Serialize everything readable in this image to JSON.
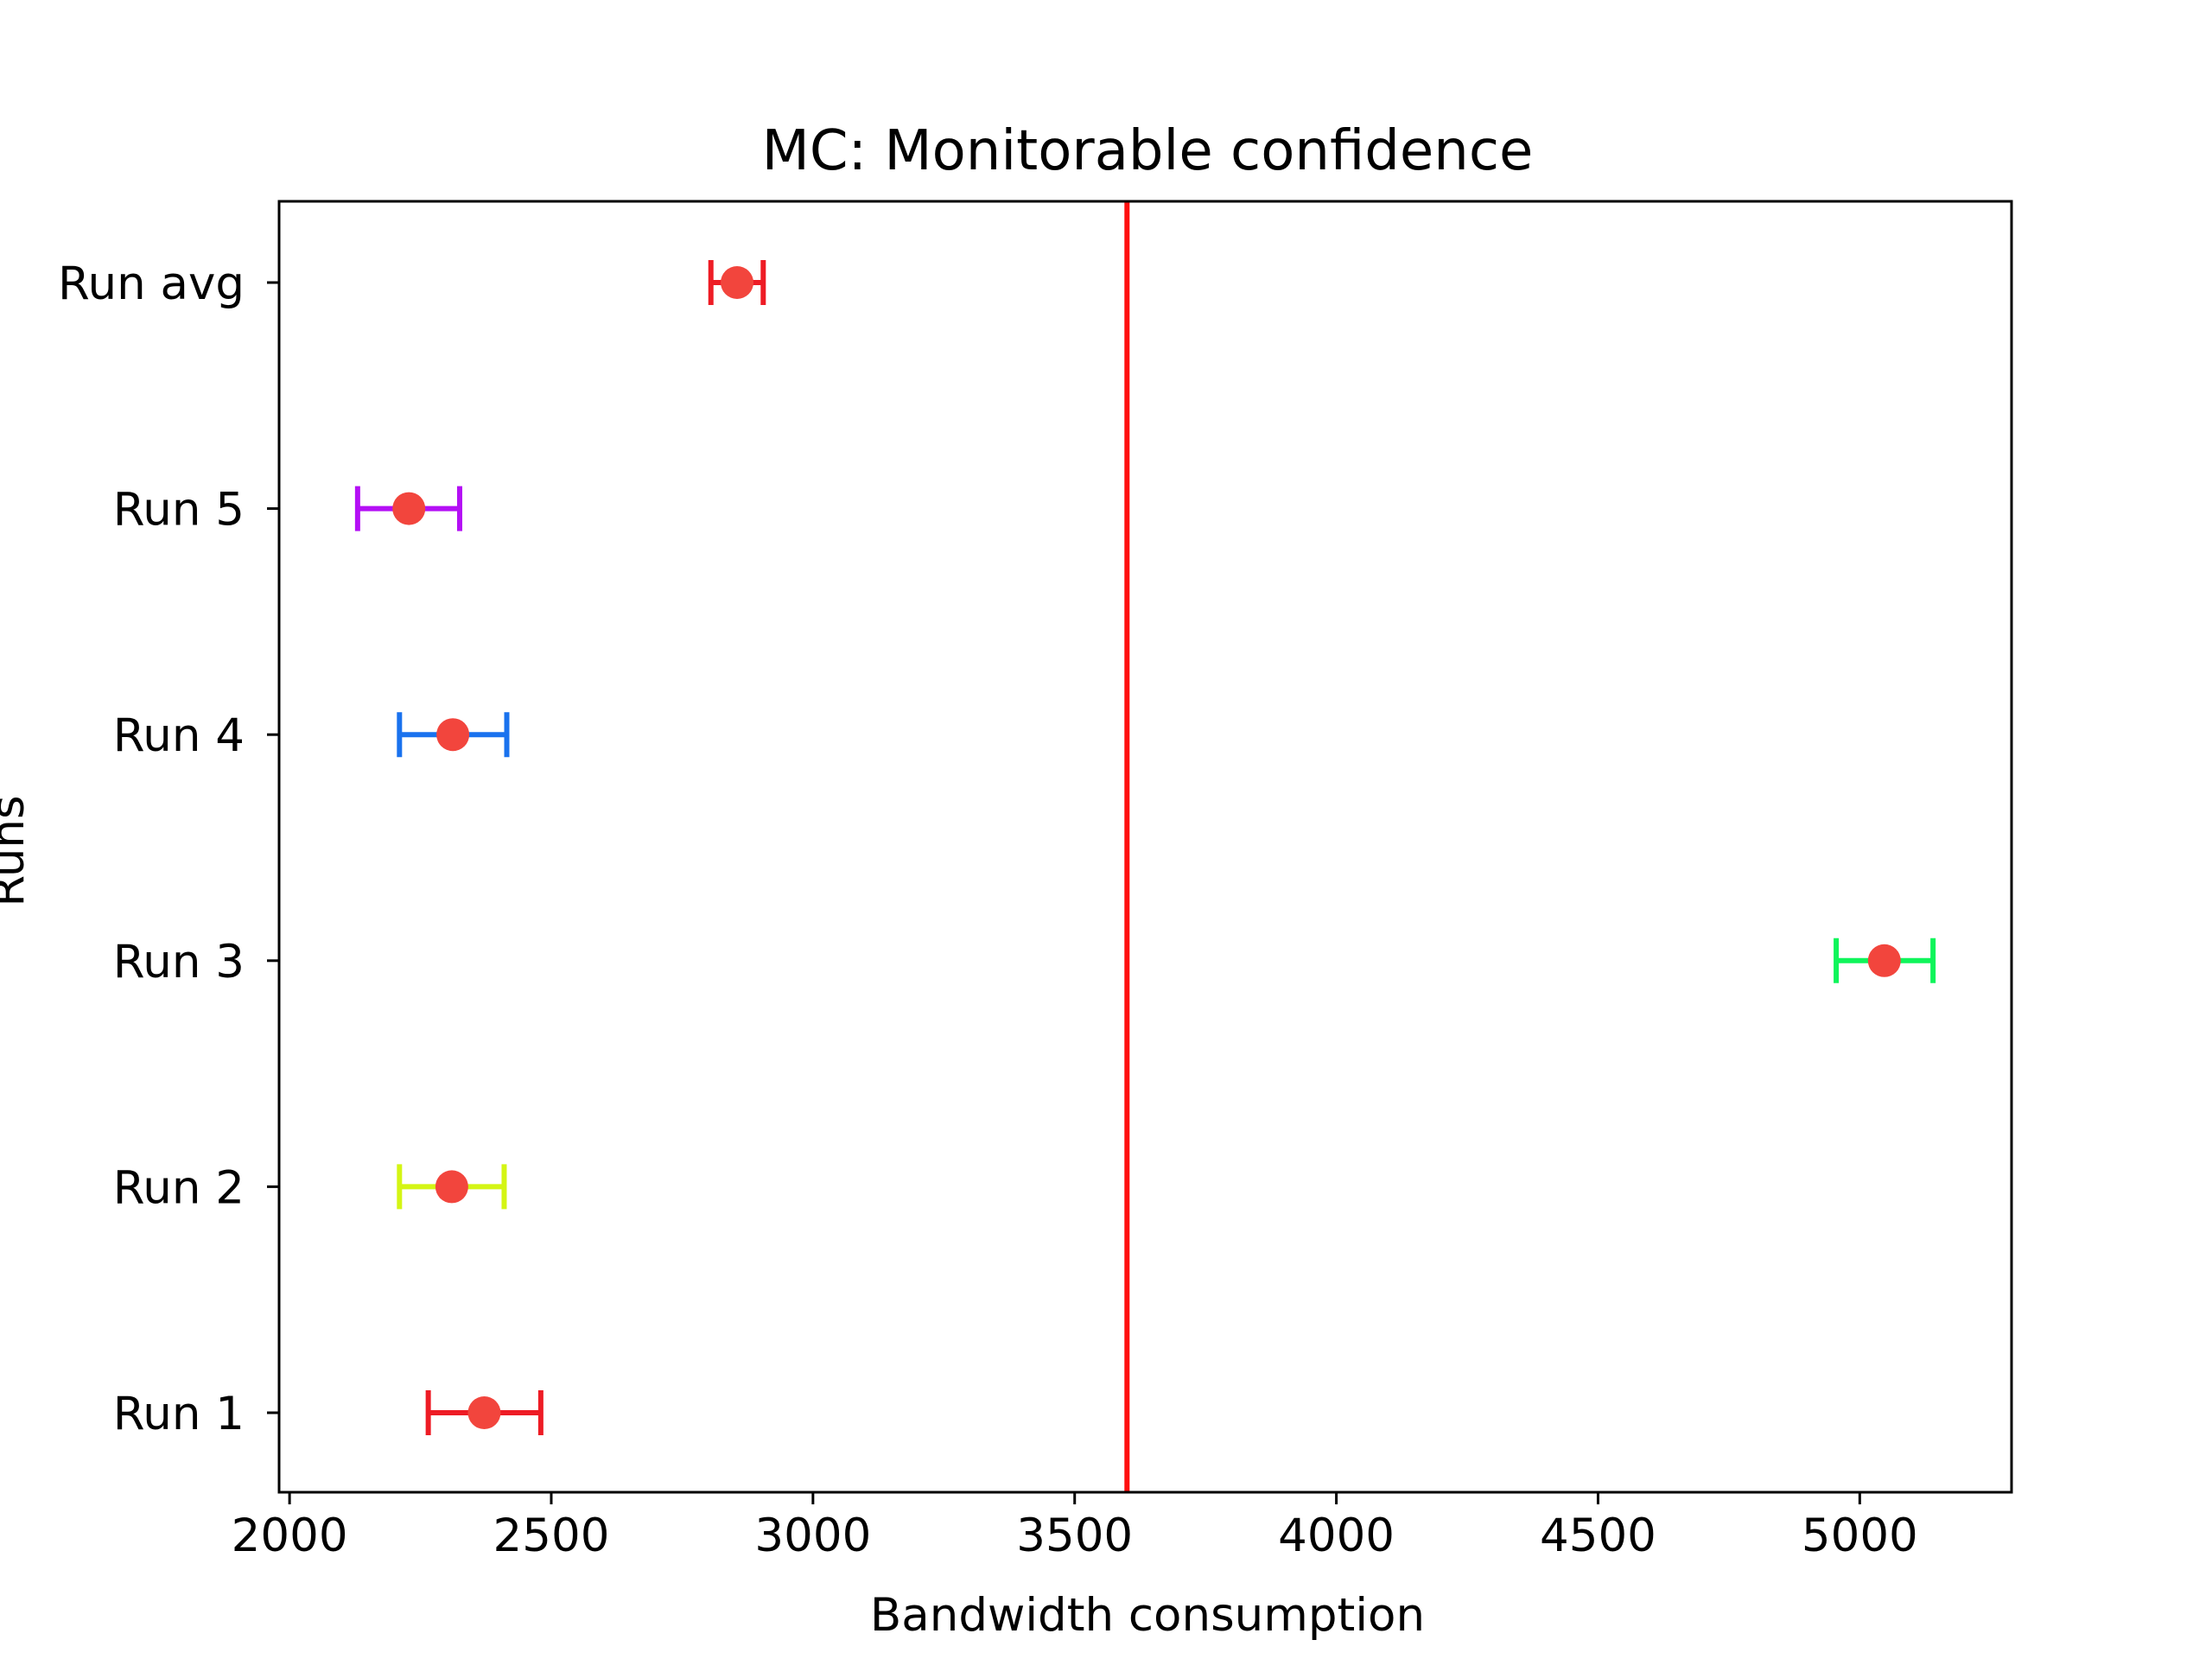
{
  "chart_data": {
    "type": "errorbar",
    "title": "MC: Monitorable confidence",
    "xlabel": "Bandwidth consumption",
    "ylabel": "Runs",
    "xlim": [
      1980,
      5290
    ],
    "xticks": [
      2000,
      2500,
      3000,
      3500,
      4000,
      4500,
      5000
    ],
    "xtick_labels": [
      "2000",
      "2500",
      "3000",
      "3500",
      "4000",
      "4500",
      "5000"
    ],
    "categories": [
      "Run 1",
      "Run 2",
      "Run 3",
      "Run 4",
      "Run 5",
      "Run avg"
    ],
    "series": [
      {
        "values": [
          2372,
          2310,
          5047,
          2312,
          2228,
          2855
        ],
        "err_low": [
          2265,
          2210,
          4955,
          2210,
          2130,
          2805
        ],
        "err_high": [
          2480,
          2410,
          5140,
          2415,
          2325,
          2905
        ],
        "errbar_colors": [
          "#ee1c25",
          "#d4f514",
          "#0ff55a",
          "#1a72ee",
          "#b40ff5",
          "#ee1c25"
        ],
        "marker_color": "#f2453d"
      }
    ],
    "reference_line": {
      "x": 3600,
      "color": "#ff1010"
    },
    "grid": false,
    "legend": false
  }
}
